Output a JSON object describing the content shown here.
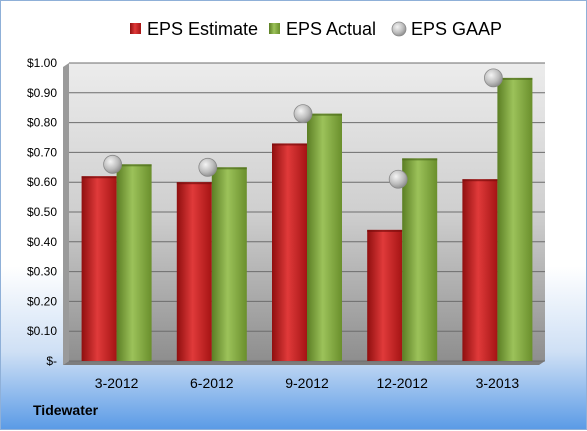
{
  "company": "Tidewater",
  "chart_data": {
    "type": "bar",
    "categories": [
      "3-2012",
      "6-2012",
      "9-2012",
      "12-2012",
      "3-2013"
    ],
    "series": [
      {
        "name": "EPS Estimate",
        "values": [
          0.62,
          0.6,
          0.73,
          0.44,
          0.61
        ],
        "color": "#c81e1e"
      },
      {
        "name": "EPS Actual",
        "values": [
          0.66,
          0.65,
          0.83,
          0.68,
          0.95
        ],
        "color": "#7fa53c"
      }
    ],
    "points": {
      "name": "EPS GAAP",
      "values": [
        0.66,
        0.65,
        0.83,
        0.61,
        0.95
      ],
      "color": "#b5b5b5"
    },
    "ylim": [
      0,
      1.0
    ],
    "yticks": [
      {
        "value": 0.0,
        "label": "$-"
      },
      {
        "value": 0.1,
        "label": "$0.10"
      },
      {
        "value": 0.2,
        "label": "$0.20"
      },
      {
        "value": 0.3,
        "label": "$0.30"
      },
      {
        "value": 0.4,
        "label": "$0.40"
      },
      {
        "value": 0.5,
        "label": "$0.50"
      },
      {
        "value": 0.6,
        "label": "$0.60"
      },
      {
        "value": 0.7,
        "label": "$0.70"
      },
      {
        "value": 0.8,
        "label": "$0.80"
      },
      {
        "value": 0.9,
        "label": "$0.90"
      },
      {
        "value": 1.0,
        "label": "$1.00"
      }
    ],
    "grid": true,
    "legend_position": "top"
  }
}
